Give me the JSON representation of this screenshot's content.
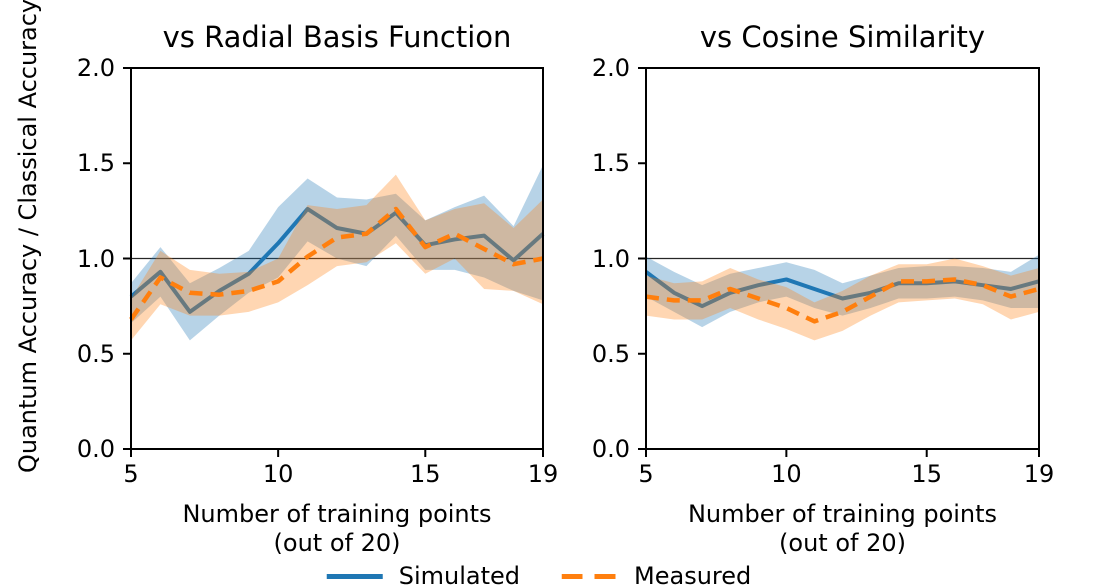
{
  "figure": {
    "ylabel": "Quantum Accuracy / Classical Accuracy"
  },
  "legend": {
    "items": [
      {
        "label": "Simulated",
        "style": "solid",
        "color": "#1f77b4"
      },
      {
        "label": "Measured",
        "style": "dashed",
        "color": "#ff7f0e"
      }
    ]
  },
  "colors": {
    "simulated": "#1f77b4",
    "measured": "#ff7f0e",
    "reference_line": "#262626",
    "band_opacity": 0.32
  },
  "chart_data": [
    {
      "type": "line",
      "title": "vs Radial Basis Function",
      "xlabel_line1": "Number of training points",
      "xlabel_line2": "(out of 20)",
      "xlim": [
        5,
        19
      ],
      "ylim": [
        0.0,
        2.0
      ],
      "xticks": [
        5,
        10,
        15,
        19
      ],
      "yticks": [
        "0.0",
        "0.5",
        "1.0",
        "1.5",
        "2.0"
      ],
      "ytick_values": [
        0.0,
        0.5,
        1.0,
        1.5,
        2.0
      ],
      "reference_line_y": 1.0,
      "x": [
        5,
        6,
        7,
        8,
        9,
        10,
        11,
        12,
        13,
        14,
        15,
        16,
        17,
        18,
        19
      ],
      "series": [
        {
          "name": "Simulated",
          "color": "#1f77b4",
          "dash": false,
          "mean": [
            0.8,
            0.93,
            0.72,
            0.83,
            0.92,
            1.08,
            1.26,
            1.16,
            1.13,
            1.24,
            1.07,
            1.1,
            1.12,
            0.99,
            1.13
          ],
          "upper": [
            0.87,
            1.06,
            0.87,
            0.95,
            1.04,
            1.27,
            1.42,
            1.32,
            1.31,
            1.34,
            1.2,
            1.27,
            1.33,
            1.17,
            1.49
          ],
          "lower": [
            0.66,
            0.8,
            0.57,
            0.7,
            0.82,
            0.9,
            1.09,
            1.0,
            0.96,
            1.12,
            0.94,
            0.94,
            0.9,
            0.83,
            0.78
          ]
        },
        {
          "name": "Measured",
          "color": "#ff7f0e",
          "dash": true,
          "mean": [
            0.68,
            0.9,
            0.82,
            0.81,
            0.83,
            0.88,
            1.01,
            1.11,
            1.13,
            1.26,
            1.06,
            1.13,
            1.05,
            0.97,
            1.0
          ],
          "upper": [
            0.79,
            1.04,
            0.94,
            0.92,
            0.93,
            1.0,
            1.28,
            1.26,
            1.28,
            1.44,
            1.2,
            1.26,
            1.29,
            1.16,
            1.31
          ],
          "lower": [
            0.57,
            0.76,
            0.7,
            0.7,
            0.72,
            0.77,
            0.86,
            0.96,
            0.98,
            1.08,
            0.92,
            1.0,
            0.84,
            0.83,
            0.76
          ]
        }
      ]
    },
    {
      "type": "line",
      "title": "vs Cosine Similarity",
      "xlabel_line1": "Number of training points",
      "xlabel_line2": "(out of 20)",
      "xlim": [
        5,
        19
      ],
      "ylim": [
        0.0,
        2.0
      ],
      "xticks": [
        5,
        10,
        15,
        19
      ],
      "yticks": [
        "0.0",
        "0.5",
        "1.0",
        "1.5",
        "2.0"
      ],
      "ytick_values": [
        0.0,
        0.5,
        1.0,
        1.5,
        2.0
      ],
      "reference_line_y": 1.0,
      "x": [
        5,
        6,
        7,
        8,
        9,
        10,
        11,
        12,
        13,
        14,
        15,
        16,
        17,
        18,
        19
      ],
      "series": [
        {
          "name": "Simulated",
          "color": "#1f77b4",
          "dash": false,
          "mean": [
            0.93,
            0.82,
            0.75,
            0.82,
            0.86,
            0.89,
            0.84,
            0.79,
            0.82,
            0.87,
            0.87,
            0.88,
            0.86,
            0.84,
            0.88
          ],
          "upper": [
            1.01,
            0.93,
            0.86,
            0.92,
            0.95,
            0.98,
            0.94,
            0.87,
            0.91,
            0.95,
            0.96,
            0.96,
            0.95,
            0.93,
            1.02
          ],
          "lower": [
            0.8,
            0.72,
            0.64,
            0.72,
            0.77,
            0.8,
            0.74,
            0.7,
            0.74,
            0.79,
            0.79,
            0.8,
            0.78,
            0.74,
            0.74
          ]
        },
        {
          "name": "Measured",
          "color": "#ff7f0e",
          "dash": true,
          "mean": [
            0.8,
            0.78,
            0.78,
            0.84,
            0.79,
            0.74,
            0.67,
            0.72,
            0.8,
            0.88,
            0.88,
            0.89,
            0.86,
            0.8,
            0.84
          ],
          "upper": [
            0.91,
            0.87,
            0.88,
            0.95,
            0.89,
            0.85,
            0.77,
            0.83,
            0.91,
            0.97,
            0.97,
            1.0,
            0.96,
            0.91,
            0.95
          ],
          "lower": [
            0.7,
            0.68,
            0.68,
            0.74,
            0.68,
            0.63,
            0.57,
            0.62,
            0.7,
            0.77,
            0.78,
            0.79,
            0.76,
            0.68,
            0.72
          ]
        }
      ]
    }
  ]
}
